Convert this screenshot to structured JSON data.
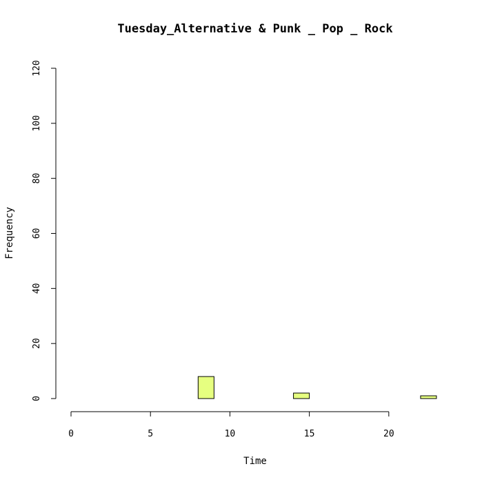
{
  "chart_data": {
    "type": "bar",
    "title": "Tuesday_Alternative & Punk _ Pop _ Rock",
    "xlabel": "Time",
    "ylabel": "Frequency",
    "xlim": [
      0,
      24
    ],
    "ylim": [
      0,
      120
    ],
    "x_ticks": [
      0,
      5,
      10,
      15,
      20
    ],
    "y_ticks": [
      0,
      20,
      40,
      60,
      80,
      100,
      120
    ],
    "bin_width": 1,
    "bins": [
      0,
      1,
      2,
      3,
      4,
      5,
      6,
      7,
      8,
      9,
      10,
      11,
      12,
      13,
      14,
      15,
      16,
      17,
      18,
      19,
      20,
      21,
      22,
      23
    ],
    "values": [
      0,
      0,
      0,
      0,
      0,
      0,
      0,
      0,
      8,
      0,
      0,
      0,
      0,
      0,
      2,
      0,
      0,
      0,
      0,
      0,
      0,
      0,
      1,
      0
    ],
    "bar_color": "#e6ff80",
    "grid": false
  }
}
